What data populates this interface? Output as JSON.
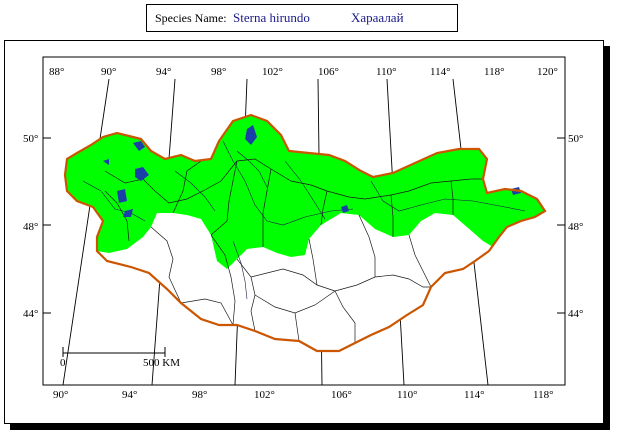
{
  "header": {
    "species_label": "Species Name:",
    "scientific_name": "Sterna hirundo",
    "local_name": "Хараалай"
  },
  "map": {
    "top_lon_labels": [
      "88°",
      "90°",
      "94°",
      "98°",
      "102°",
      "106°",
      "110°",
      "114°",
      "118°",
      "120°"
    ],
    "bottom_lon_labels": [
      "90°",
      "94°",
      "98°",
      "102°",
      "106°",
      "110°",
      "114°",
      "118°"
    ],
    "lat_labels": [
      "50°",
      "48°",
      "44°"
    ],
    "scale_bar": {
      "start": "0",
      "end": "500 KM"
    },
    "colors": {
      "range_fill": "#00ff00",
      "border": "#cc5500",
      "water": "#1a3fa8"
    }
  }
}
